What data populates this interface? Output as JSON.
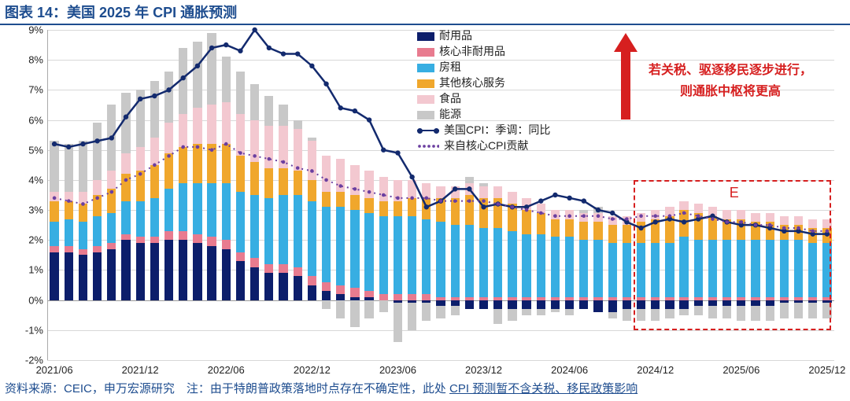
{
  "title": "图表 14：美国 2025 年 CPI 通胀预测",
  "footer_prefix": "资料来源：CEIC，申万宏源研究　注：由于特朗普政策落地时点存在不确定性，此处 ",
  "footer_underline": "CPI 预测暂不含关税、移民政策影响",
  "annotation_l1": "若关税、驱逐移民逐步进行，",
  "annotation_l2": "则通胀中枢将更高",
  "forecast_label": "E",
  "legend": {
    "durables": "耐用品",
    "core_nondur": "核心非耐用品",
    "rent": "房租",
    "other_core": "其他核心服务",
    "food": "食品",
    "energy": "能源",
    "cpi": "美国CPI：季调：同比",
    "core_cpi": "来自核心CPI贡献"
  },
  "colors": {
    "durables": "#0c1e6b",
    "core_nondur": "#e87b8f",
    "rent": "#37aee2",
    "other_core": "#f0a72c",
    "food": "#f3c8d0",
    "energy": "#c8c8c8",
    "cpi_line": "#132a6e",
    "core_line": "#6b3fa0",
    "grid": "#d8d8d8",
    "title_color": "#1e4d8f",
    "red": "#d61f1f"
  },
  "y_axis": {
    "min": -2,
    "max": 9,
    "step": 1,
    "format_pct": true
  },
  "x_labels": [
    "2021/06",
    "2021/12",
    "2022/06",
    "2022/12",
    "2023/06",
    "2023/12",
    "2024/06",
    "2024/12",
    "2025/06",
    "2025/12"
  ],
  "x_label_indices": [
    0,
    6,
    12,
    18,
    24,
    30,
    36,
    42,
    48,
    54
  ],
  "n_points": 55,
  "forecast_start_index": 41,
  "series": {
    "durables": [
      1.6,
      1.6,
      1.5,
      1.6,
      1.7,
      2.0,
      1.9,
      1.9,
      2.0,
      2.0,
      1.9,
      1.8,
      1.7,
      1.3,
      1.1,
      0.9,
      0.9,
      0.8,
      0.5,
      0.3,
      0.2,
      0.1,
      0.1,
      0.0,
      -0.1,
      -0.1,
      -0.1,
      -0.2,
      -0.2,
      -0.3,
      -0.3,
      -0.3,
      -0.3,
      -0.3,
      -0.3,
      -0.3,
      -0.3,
      -0.3,
      -0.4,
      -0.4,
      -0.3,
      -0.3,
      -0.3,
      -0.3,
      -0.3,
      -0.2,
      -0.2,
      -0.2,
      -0.2,
      -0.2,
      -0.2,
      -0.1,
      -0.1,
      -0.1,
      -0.1
    ],
    "core_nondur": [
      0.2,
      0.2,
      0.2,
      0.2,
      0.2,
      0.2,
      0.2,
      0.2,
      0.3,
      0.3,
      0.3,
      0.3,
      0.3,
      0.3,
      0.3,
      0.3,
      0.3,
      0.3,
      0.3,
      0.3,
      0.3,
      0.3,
      0.2,
      0.2,
      0.2,
      0.2,
      0.2,
      0.1,
      0.1,
      0.1,
      0.1,
      0.1,
      0.1,
      0.1,
      0.1,
      0.1,
      0.1,
      0.1,
      0.1,
      0.1,
      0.1,
      0.1,
      0.1,
      0.1,
      0.1,
      0.1,
      0.1,
      0.1,
      0.1,
      0.1,
      0.1,
      0.1,
      0.1,
      0.1,
      0.1
    ],
    "rent": [
      0.8,
      0.9,
      0.9,
      1.0,
      1.0,
      1.1,
      1.2,
      1.3,
      1.4,
      1.6,
      1.7,
      1.8,
      1.9,
      2.0,
      2.1,
      2.2,
      2.3,
      2.4,
      2.5,
      2.5,
      2.6,
      2.6,
      2.6,
      2.6,
      2.6,
      2.6,
      2.5,
      2.5,
      2.4,
      2.4,
      2.3,
      2.3,
      2.2,
      2.1,
      2.1,
      2.0,
      2.0,
      1.9,
      1.9,
      1.8,
      1.8,
      1.8,
      1.8,
      1.8,
      2.0,
      1.9,
      1.9,
      1.9,
      1.9,
      1.9,
      1.9,
      1.9,
      1.9,
      1.8,
      1.8
    ],
    "other_core": [
      0.7,
      0.6,
      0.6,
      0.7,
      0.8,
      0.9,
      1.0,
      1.1,
      1.2,
      1.2,
      1.3,
      1.3,
      1.3,
      1.2,
      1.1,
      1.0,
      0.9,
      0.8,
      0.7,
      0.5,
      0.5,
      0.5,
      0.5,
      0.5,
      0.5,
      0.6,
      0.7,
      0.8,
      0.9,
      1.0,
      1.0,
      1.0,
      0.9,
      0.8,
      0.7,
      0.6,
      0.6,
      0.6,
      0.6,
      0.6,
      0.6,
      0.7,
      0.8,
      0.9,
      0.9,
      0.9,
      0.8,
      0.7,
      0.7,
      0.6,
      0.6,
      0.5,
      0.5,
      0.5,
      0.5
    ],
    "food": [
      0.3,
      0.3,
      0.4,
      0.5,
      0.6,
      0.7,
      0.8,
      0.9,
      1.0,
      1.1,
      1.2,
      1.3,
      1.4,
      1.4,
      1.4,
      1.4,
      1.4,
      1.4,
      1.3,
      1.2,
      1.1,
      1.0,
      0.9,
      0.8,
      0.7,
      0.6,
      0.5,
      0.4,
      0.4,
      0.4,
      0.4,
      0.4,
      0.4,
      0.4,
      0.3,
      0.3,
      0.3,
      0.3,
      0.3,
      0.3,
      0.3,
      0.3,
      0.3,
      0.3,
      0.3,
      0.3,
      0.3,
      0.3,
      0.3,
      0.3,
      0.3,
      0.3,
      0.3,
      0.3,
      0.3
    ],
    "energy_pos": [
      1.7,
      1.6,
      1.7,
      1.9,
      2.2,
      2.0,
      1.9,
      1.9,
      1.7,
      2.2,
      2.2,
      2.4,
      1.5,
      1.4,
      1.2,
      1.0,
      0.7,
      0.3,
      0.1,
      0.0,
      0.0,
      0.0,
      0.0,
      0.0,
      0.0,
      0.0,
      0.0,
      0.0,
      0.0,
      0.2,
      0.1,
      0.0,
      0.0,
      0.0,
      0.0,
      0.0,
      0.0,
      0.1,
      0.2,
      0.0,
      0.0,
      0.0,
      0.0,
      0.0,
      0.0,
      0.0,
      0.0,
      0.0,
      0.0,
      0.0,
      0.0,
      0.0,
      0.0,
      0.0,
      0.0
    ],
    "energy_neg": [
      0.0,
      0.0,
      0.0,
      0.0,
      0.0,
      0.0,
      0.0,
      0.0,
      0.0,
      0.0,
      0.0,
      0.0,
      0.0,
      0.0,
      0.0,
      0.0,
      0.0,
      0.0,
      0.0,
      -0.3,
      -0.6,
      -0.9,
      -0.6,
      -0.4,
      -1.3,
      -0.9,
      -0.6,
      -0.4,
      -0.3,
      0.0,
      0.0,
      -0.5,
      -0.4,
      -0.2,
      -0.2,
      -0.1,
      -0.2,
      0.0,
      0.0,
      -0.2,
      -0.4,
      -0.4,
      -0.4,
      -0.3,
      -0.2,
      -0.3,
      -0.4,
      -0.4,
      -0.5,
      -0.5,
      -0.5,
      -0.5,
      -0.5,
      -0.5,
      -0.5
    ]
  },
  "cpi_line": [
    5.2,
    5.1,
    5.2,
    5.3,
    5.4,
    6.1,
    6.7,
    6.8,
    7.0,
    7.4,
    7.8,
    8.4,
    8.5,
    8.3,
    9.0,
    8.4,
    8.2,
    8.2,
    7.8,
    7.2,
    6.4,
    6.3,
    6.0,
    5.0,
    4.9,
    4.1,
    3.1,
    3.3,
    3.7,
    3.7,
    3.1,
    3.2,
    3.1,
    3.1,
    3.3,
    3.5,
    3.4,
    3.3,
    3.0,
    2.9,
    2.6,
    2.4,
    2.6,
    2.7,
    2.6,
    2.7,
    2.8,
    2.6,
    2.5,
    2.5,
    2.4,
    2.3,
    2.3,
    2.2,
    2.2
  ],
  "core_line": [
    3.4,
    3.3,
    3.2,
    3.4,
    3.6,
    4.0,
    4.2,
    4.5,
    4.8,
    5.1,
    5.1,
    5.0,
    5.2,
    4.9,
    4.8,
    4.7,
    4.6,
    4.4,
    4.3,
    4.0,
    3.8,
    3.7,
    3.6,
    3.5,
    3.4,
    3.4,
    3.4,
    3.3,
    3.3,
    3.3,
    3.3,
    3.2,
    3.1,
    3.0,
    2.9,
    2.8,
    2.8,
    2.8,
    2.8,
    2.7,
    2.7,
    2.8,
    2.8,
    2.8,
    2.9,
    2.8,
    2.7,
    2.6,
    2.6,
    2.5,
    2.5,
    2.4,
    2.4,
    2.3,
    2.3
  ]
}
